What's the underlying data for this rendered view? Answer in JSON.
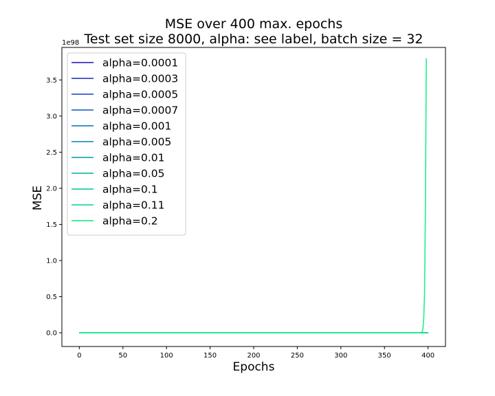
{
  "chart_data": {
    "type": "line",
    "title": "MSE  over 400 max. epochs",
    "subtitle": "Test set size 8000, alpha: see label, batch size = 32",
    "xlabel": "Epochs",
    "ylabel": "MSE",
    "y_scale_label": "1e98",
    "xlim": [
      -20,
      420
    ],
    "ylim": [
      -0.19,
      3.95
    ],
    "x_ticks": [
      0,
      50,
      100,
      150,
      200,
      250,
      300,
      350,
      400
    ],
    "y_ticks": [
      0.0,
      0.5,
      1.0,
      1.5,
      2.0,
      2.5,
      3.0,
      3.5
    ],
    "x_tick_labels": [
      "0",
      "50",
      "100",
      "150",
      "200",
      "250",
      "300",
      "350",
      "400"
    ],
    "y_tick_labels": [
      "0.0",
      "0.5",
      "1.0",
      "1.5",
      "2.0",
      "2.5",
      "3.0",
      "3.5"
    ],
    "grid": false,
    "legend_position": "upper-left",
    "series": [
      {
        "name": "alpha=0.0001",
        "color": "#3a2fc4",
        "x": [
          0,
          400
        ],
        "y": [
          0,
          0
        ]
      },
      {
        "name": "alpha=0.0003",
        "color": "#3446c6",
        "x": [
          0,
          400
        ],
        "y": [
          0,
          0
        ]
      },
      {
        "name": "alpha=0.0005",
        "color": "#305bc4",
        "x": [
          0,
          400
        ],
        "y": [
          0,
          0
        ]
      },
      {
        "name": "alpha=0.0007",
        "color": "#2c6fc2",
        "x": [
          0,
          400
        ],
        "y": [
          0,
          0
        ]
      },
      {
        "name": "alpha=0.001",
        "color": "#2882bf",
        "x": [
          0,
          400
        ],
        "y": [
          0,
          0
        ]
      },
      {
        "name": "alpha=0.005",
        "color": "#2496bc",
        "x": [
          0,
          400
        ],
        "y": [
          0,
          0
        ]
      },
      {
        "name": "alpha=0.01",
        "color": "#21a9b8",
        "x": [
          0,
          400
        ],
        "y": [
          0,
          0
        ]
      },
      {
        "name": "alpha=0.05",
        "color": "#1ebcb0",
        "x": [
          0,
          400
        ],
        "y": [
          0,
          0
        ]
      },
      {
        "name": "alpha=0.1",
        "color": "#1ccfa6",
        "x": [
          0,
          400
        ],
        "y": [
          0,
          0
        ]
      },
      {
        "name": "alpha=0.11",
        "color": "#1ddf9a",
        "x": [
          0,
          400
        ],
        "y": [
          0,
          0
        ]
      },
      {
        "name": "alpha=0.2",
        "color": "#22ee8c",
        "x": [
          0,
          390,
          393,
          394,
          395,
          396,
          397,
          398
        ],
        "y": [
          0,
          0,
          0.01,
          0.04,
          0.18,
          0.55,
          1.8,
          3.8
        ]
      }
    ]
  }
}
